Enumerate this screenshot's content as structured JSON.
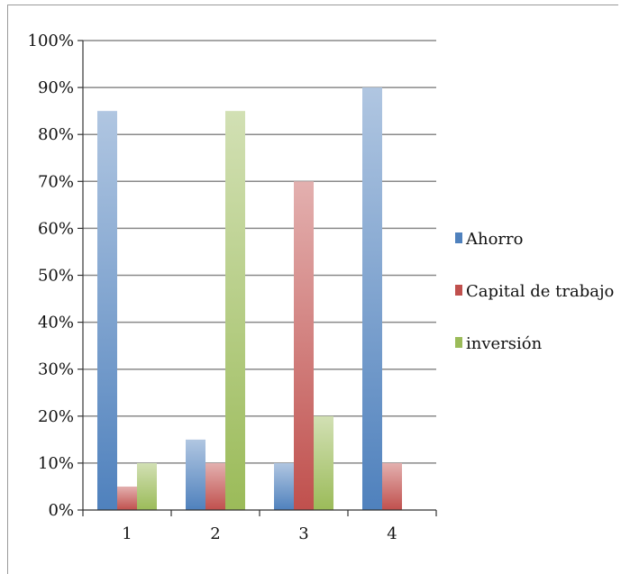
{
  "chart_data": {
    "type": "bar",
    "title": "",
    "xlabel": "",
    "ylabel": "",
    "categories": [
      "1",
      "2",
      "3",
      "4"
    ],
    "ylim": [
      0,
      100
    ],
    "y_ticks": [
      "0%",
      "10%",
      "20%",
      "30%",
      "40%",
      "50%",
      "60%",
      "70%",
      "80%",
      "90%",
      "100%"
    ],
    "y_unit": "%",
    "grid": true,
    "legend_position": "right",
    "series": [
      {
        "name": "Ahorro",
        "values": [
          85,
          15,
          10,
          90
        ],
        "color": "#4f81bd"
      },
      {
        "name": "Capital de trabajo",
        "values": [
          5,
          10,
          70,
          10
        ],
        "color": "#c0504d"
      },
      {
        "name": "inversión",
        "values": [
          10,
          85,
          20,
          0
        ],
        "color": "#9bbb59"
      }
    ]
  }
}
